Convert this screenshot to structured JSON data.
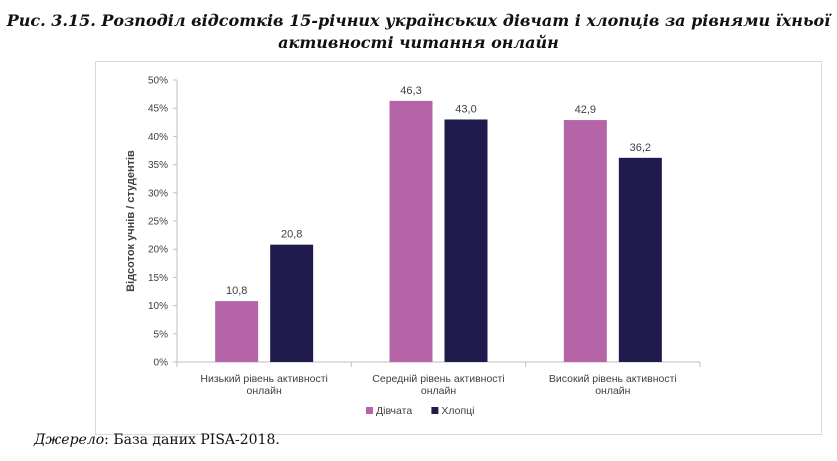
{
  "figure": {
    "title_line1": "Рис. 3.15. Розподіл відсотків 15-річних українських дівчат і хлопців за рівнями їхньої",
    "title_line2": "активності читання онлайн"
  },
  "source": {
    "label": "Джерело",
    "text": ": База даних PISA-2018."
  },
  "chart_data": {
    "type": "bar",
    "categories": [
      [
        "Низький рівень активності",
        "онлайн"
      ],
      [
        "Середній рівень активності",
        "онлайн"
      ],
      [
        "Високий рівень активності",
        "онлайн"
      ]
    ],
    "series": [
      {
        "name": "Дівчата",
        "values": [
          10.8,
          46.3,
          42.9
        ],
        "labels": [
          "10,8",
          "46,3",
          "42,9"
        ],
        "color": "#b565a7"
      },
      {
        "name": "Хлопці",
        "values": [
          20.8,
          43.0,
          36.2
        ],
        "labels": [
          "20,8",
          "43,0",
          "36,2"
        ],
        "color": "#1f1b4d"
      }
    ],
    "ylabel": "Відсоток учнів / студентів",
    "ylim": [
      0,
      50
    ],
    "yticks": [
      0,
      5,
      10,
      15,
      20,
      25,
      30,
      35,
      40,
      45,
      50
    ],
    "ytick_labels": [
      "0%",
      "5%",
      "10%",
      "15%",
      "20%",
      "25%",
      "30%",
      "35%",
      "40%",
      "45%",
      "50%"
    ],
    "grid": false,
    "legend_position": "bottom"
  }
}
